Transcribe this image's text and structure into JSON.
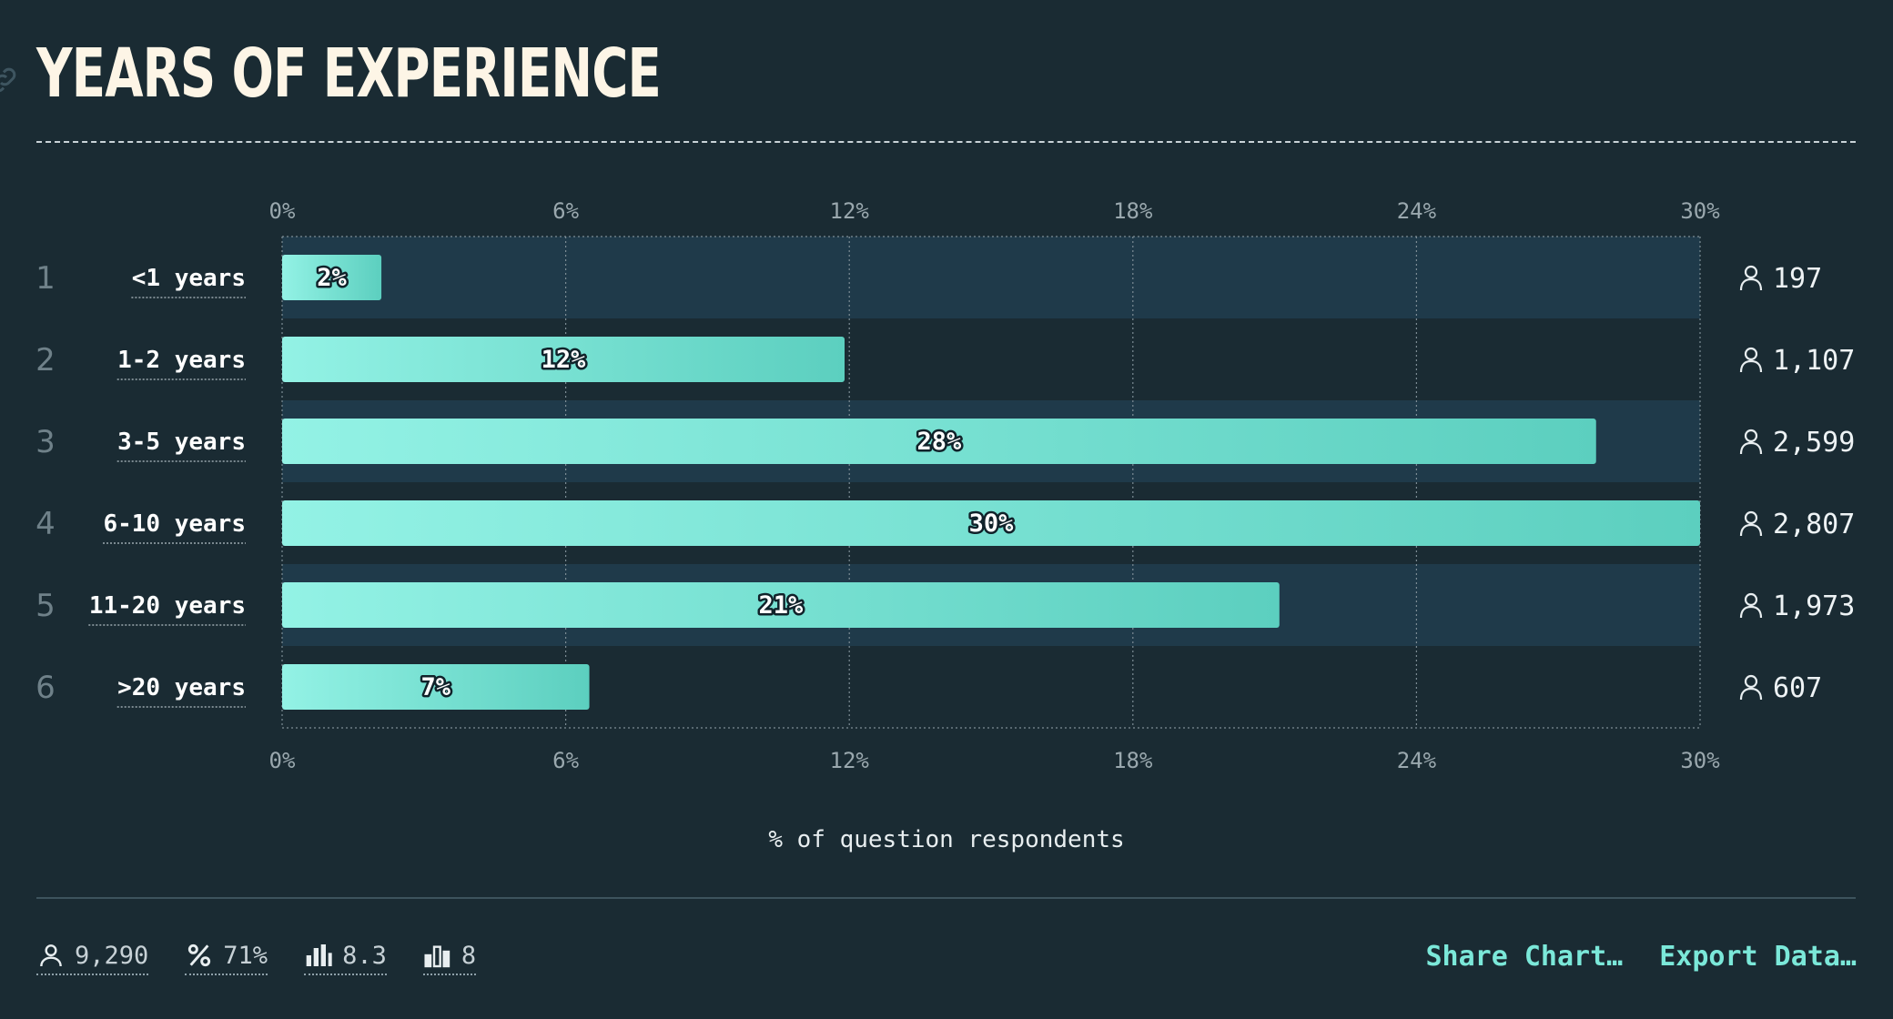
{
  "header": {
    "title": "YEARS OF EXPERIENCE"
  },
  "chart_data": {
    "type": "bar",
    "orientation": "horizontal",
    "categories": [
      "<1 years",
      "1-2 years",
      "3-5 years",
      "6-10 years",
      "11-20 years",
      ">20 years"
    ],
    "ranks": [
      "1",
      "2",
      "3",
      "4",
      "5",
      "6"
    ],
    "values": [
      2.1,
      11.9,
      27.8,
      30.0,
      21.1,
      6.5
    ],
    "value_labels": [
      "2%",
      "12%",
      "28%",
      "30%",
      "21%",
      "7%"
    ],
    "counts": [
      "197",
      "1,107",
      "2,599",
      "2,807",
      "1,973",
      "607"
    ],
    "xlim": [
      0,
      30
    ],
    "ticks": [
      0,
      6,
      12,
      18,
      24,
      30
    ],
    "tick_labels": [
      "0%",
      "6%",
      "12%",
      "18%",
      "24%",
      "30%"
    ],
    "xlabel": "% of question respondents",
    "grid": true,
    "colors": {
      "bar_start": "#93f2e5",
      "bar_end": "#5ccfbf",
      "band": "#1f3a4a",
      "background": "#1a2b33"
    }
  },
  "footer": {
    "stats": [
      {
        "icon": "person-icon",
        "value": "9,290"
      },
      {
        "icon": "percent-icon",
        "value": "71%"
      },
      {
        "icon": "bar-chart-icon",
        "value": "8.3"
      },
      {
        "icon": "bar-chart-outline-icon",
        "value": "8"
      }
    ],
    "share_label": "Share Chart…",
    "export_label": "Export Data…"
  }
}
